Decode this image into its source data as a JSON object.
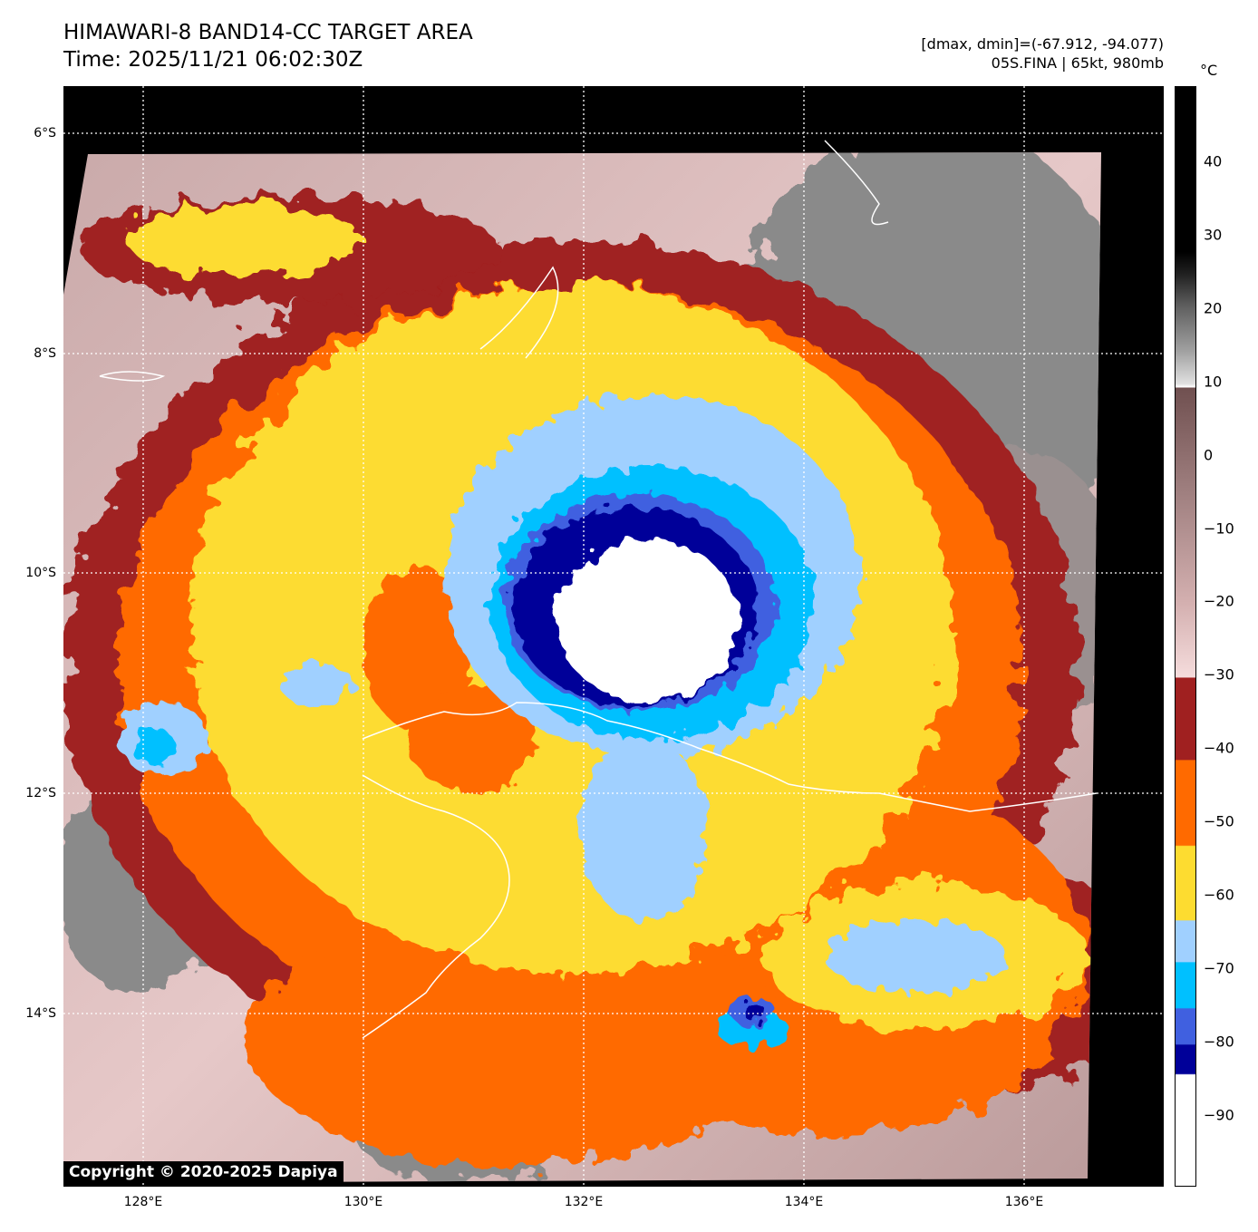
{
  "title": {
    "line1": "HIMAWARI-8 BAND14-CC TARGET AREA",
    "line2": "Time: 2025/11/21 06:02:30Z"
  },
  "info": {
    "range": "[dmax, dmin]=(-67.912, -94.077)",
    "storm": "05S.FINA | 65kt, 980mb"
  },
  "colorbar": {
    "unit": "°C",
    "ticks": [
      "40",
      "30",
      "20",
      "10",
      "0",
      "−10",
      "−20",
      "−30",
      "−40",
      "−50",
      "−60",
      "−70",
      "−80",
      "−90"
    ],
    "colors": {
      "dark_red": "#a02020",
      "orange": "#ff6a00",
      "yellow": "#fddc30",
      "light_blue": "#a0d0ff",
      "sky_blue": "#00c0ff",
      "royal_blue": "#4060e0",
      "navy": "#000099"
    }
  },
  "lat_labels": [
    "6°S",
    "8°S",
    "10°S",
    "12°S",
    "14°S"
  ],
  "lon_labels": [
    "128°E",
    "130°E",
    "132°E",
    "134°E",
    "136°E"
  ],
  "copyright": "Copyright © 2020-2025 Dapiya"
}
